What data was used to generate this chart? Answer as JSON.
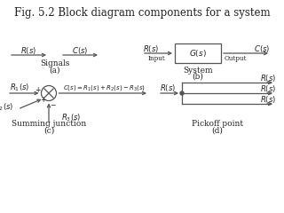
{
  "title": "Fig. 5.2 Block diagram components for a system",
  "title_fontsize": 8.5,
  "line_color": "#555555",
  "label_a": "(a)",
  "label_b": "(b)",
  "label_c": "(c)",
  "label_d": "(d)",
  "signals_label": "Signals",
  "system_label": "System",
  "summing_label": "Summing junction",
  "pickoff_label": "Pickoff point"
}
